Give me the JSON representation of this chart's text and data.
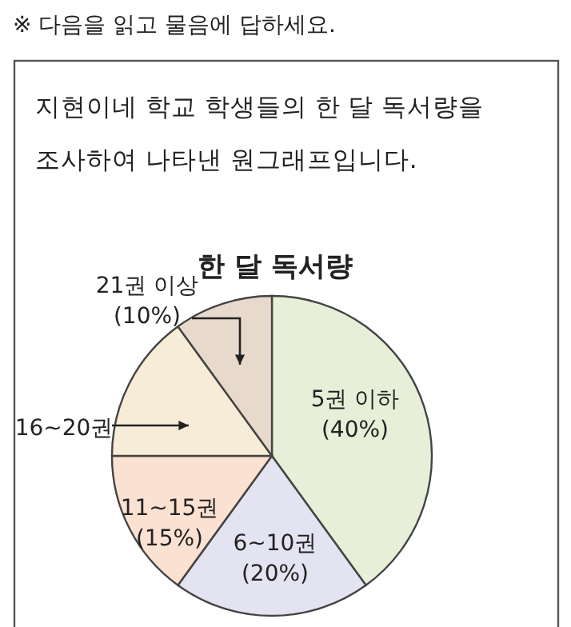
{
  "chart_data": {
    "type": "pie",
    "title": "한 달 독서량",
    "annotations": [
      "※ 다음을 읽고 물음에 답하세요.",
      "지현이네 학교 학생들의 한 달 독서량을",
      "조사하여 나타낸 원그래프입니다."
    ],
    "categories": [
      "5권 이하",
      "6~10권",
      "11~15권",
      "16~20권",
      "21권 이상"
    ],
    "values": [
      40,
      20,
      15,
      15,
      10
    ],
    "value_labels": [
      "(40%)",
      "(20%)",
      "(15%)",
      null,
      "(10%)"
    ],
    "colors": [
      "#e7efd8",
      "#e3e3f1",
      "#fbe1d2",
      "#f7ecd7",
      "#e8d9cd"
    ]
  }
}
